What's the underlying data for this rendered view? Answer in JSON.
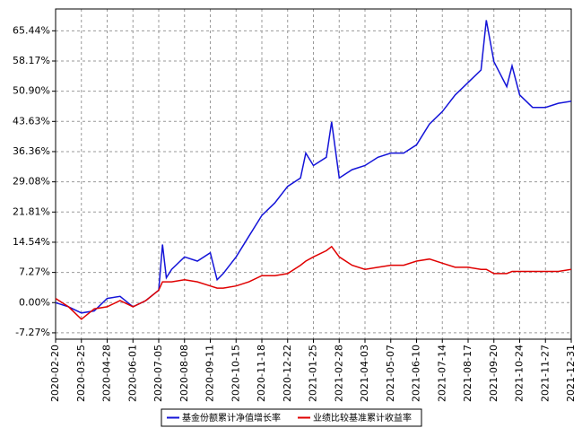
{
  "chart_data": {
    "type": "line",
    "x": [
      "2020-02-20",
      "2020-03-08",
      "2020-03-25",
      "2020-04-11",
      "2020-04-28",
      "2020-05-15",
      "2020-06-01",
      "2020-06-18",
      "2020-07-05",
      "2020-07-10",
      "2020-07-15",
      "2020-07-22",
      "2020-08-08",
      "2020-08-25",
      "2020-09-11",
      "2020-09-20",
      "2020-09-28",
      "2020-10-15",
      "2020-11-01",
      "2020-11-18",
      "2020-12-05",
      "2020-12-22",
      "2021-01-08",
      "2021-01-15",
      "2021-01-25",
      "2021-02-11",
      "2021-02-18",
      "2021-02-28",
      "2021-03-17",
      "2021-04-03",
      "2021-04-20",
      "2021-05-07",
      "2021-05-24",
      "2021-06-10",
      "2021-06-27",
      "2021-07-14",
      "2021-07-31",
      "2021-08-17",
      "2021-09-03",
      "2021-09-10",
      "2021-09-20",
      "2021-10-07",
      "2021-10-14",
      "2021-10-24",
      "2021-11-10",
      "2021-11-27",
      "2021-12-14",
      "2021-12-31"
    ],
    "series": [
      {
        "name": "基金份额累计净值增长率",
        "color": "#1414d8",
        "values": [
          0,
          -1,
          -2.5,
          -2,
          1,
          1.5,
          -1,
          0.5,
          3,
          14,
          6,
          8,
          11,
          10,
          12,
          5.5,
          7,
          11,
          16,
          21,
          24,
          28,
          30,
          36,
          33,
          35,
          43.5,
          30,
          32,
          33,
          35,
          36,
          36,
          38,
          43,
          46,
          50,
          53,
          56,
          68,
          58,
          52,
          57,
          50,
          47,
          47,
          48,
          48.5
        ]
      },
      {
        "name": "业绩比较基准累计收益率",
        "color": "#e00000",
        "values": [
          1,
          -1,
          -4,
          -1.5,
          -1,
          0.5,
          -1,
          0.5,
          3,
          5,
          5,
          5,
          5.5,
          5,
          4,
          3.5,
          3.5,
          4,
          5,
          6.5,
          6.5,
          7,
          9,
          10,
          11,
          12.5,
          13.5,
          11,
          9,
          8,
          8.5,
          9,
          9,
          10,
          10.5,
          9.5,
          8.5,
          8.5,
          8,
          8,
          7,
          7,
          7.5,
          7.5,
          7.5,
          7.5,
          7.5,
          8
        ]
      }
    ],
    "xlim": [
      "2020-02-20",
      "2021-12-31"
    ],
    "xticks": [
      "2020-02-20",
      "2020-03-25",
      "2020-04-28",
      "2020-06-01",
      "2020-07-05",
      "2020-08-08",
      "2020-09-11",
      "2020-10-15",
      "2020-11-18",
      "2020-12-22",
      "2021-01-25",
      "2021-02-28",
      "2021-04-03",
      "2021-05-07",
      "2021-06-10",
      "2021-07-14",
      "2021-08-17",
      "2021-09-20",
      "2021-10-24",
      "2021-11-27",
      "2021-12-31"
    ],
    "ylim": [
      -8.8,
      70.7
    ],
    "yticks": [
      {
        "value": -7.27,
        "label": "-7.27%"
      },
      {
        "value": 0,
        "label": "0.00%"
      },
      {
        "value": 7.27,
        "label": "7.27%"
      },
      {
        "value": 14.54,
        "label": "14.54%"
      },
      {
        "value": 21.81,
        "label": "21.81%"
      },
      {
        "value": 29.08,
        "label": "29.08%"
      },
      {
        "value": 36.36,
        "label": "36.36%"
      },
      {
        "value": 43.63,
        "label": "43.63%"
      },
      {
        "value": 50.9,
        "label": "50.90%"
      },
      {
        "value": 58.17,
        "label": "58.17%"
      },
      {
        "value": 65.44,
        "label": "65.44%"
      }
    ],
    "grid": true
  }
}
